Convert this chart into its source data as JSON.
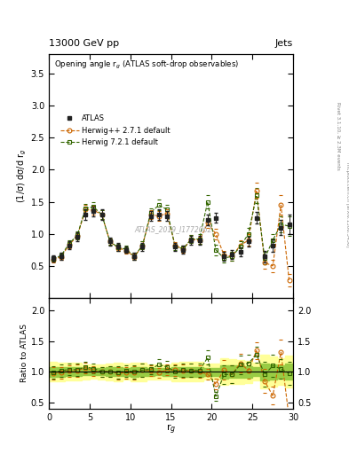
{
  "title_top": "13000 GeV pp",
  "title_right": "Jets",
  "plot_title": "Opening angle r$_g$ (ATLAS soft-drop observables)",
  "ylabel_main": "(1/σ) dσ/d r$_g$",
  "ylabel_ratio": "Ratio to ATLAS",
  "xlabel": "r$_g$",
  "watermark": "ATLAS_2019_I1772062",
  "right_label": "Rivet 3.1.10, ≥ 2.3M events",
  "right_label2": "mcplots.cern.ch [arXiv:1306.3436]",
  "xlim": [
    0,
    30
  ],
  "ylim_main": [
    0.0,
    3.8
  ],
  "ylim_ratio": [
    0.4,
    2.2
  ],
  "x": [
    0.5,
    1.5,
    2.5,
    3.5,
    4.5,
    5.5,
    6.5,
    7.5,
    8.5,
    9.5,
    10.5,
    11.5,
    12.5,
    13.5,
    14.5,
    15.5,
    16.5,
    17.5,
    18.5,
    19.5,
    20.5,
    21.5,
    22.5,
    23.5,
    24.5,
    25.5,
    26.5,
    27.5,
    28.5,
    29.5
  ],
  "atlas_y": [
    0.62,
    0.65,
    0.82,
    0.95,
    1.3,
    1.35,
    1.3,
    0.88,
    0.8,
    0.75,
    0.65,
    0.8,
    1.28,
    1.3,
    1.28,
    0.8,
    0.75,
    0.9,
    0.9,
    1.22,
    1.25,
    0.65,
    0.68,
    0.72,
    0.88,
    1.25,
    0.65,
    0.82,
    1.1,
    1.15
  ],
  "atlas_yerr": [
    0.05,
    0.05,
    0.06,
    0.07,
    0.08,
    0.08,
    0.08,
    0.06,
    0.06,
    0.05,
    0.05,
    0.06,
    0.08,
    0.08,
    0.08,
    0.06,
    0.06,
    0.07,
    0.07,
    0.08,
    0.08,
    0.07,
    0.07,
    0.07,
    0.08,
    0.09,
    0.09,
    0.1,
    0.12,
    0.15
  ],
  "herwig_pp_y": [
    0.6,
    0.64,
    0.83,
    0.97,
    1.38,
    1.37,
    1.3,
    0.88,
    0.78,
    0.74,
    0.64,
    0.82,
    1.3,
    1.28,
    1.32,
    0.82,
    0.76,
    0.92,
    0.9,
    1.17,
    1.0,
    0.67,
    0.65,
    0.82,
    0.9,
    1.68,
    0.55,
    0.5,
    1.45,
    0.28
  ],
  "herwig_pp_yerr": [
    0.04,
    0.04,
    0.05,
    0.06,
    0.07,
    0.07,
    0.07,
    0.05,
    0.05,
    0.05,
    0.05,
    0.06,
    0.07,
    0.07,
    0.07,
    0.05,
    0.05,
    0.06,
    0.06,
    0.08,
    0.08,
    0.07,
    0.07,
    0.08,
    0.09,
    0.12,
    0.1,
    0.1,
    0.15,
    0.1
  ],
  "herwig7_y": [
    0.61,
    0.66,
    0.85,
    0.98,
    1.4,
    1.42,
    1.3,
    0.88,
    0.79,
    0.76,
    0.65,
    0.82,
    1.33,
    1.45,
    1.38,
    0.8,
    0.77,
    0.92,
    0.92,
    1.5,
    0.75,
    0.62,
    0.65,
    0.8,
    1.0,
    1.6,
    0.62,
    0.9,
    1.15,
    1.12
  ],
  "herwig7_yerr": [
    0.04,
    0.04,
    0.05,
    0.06,
    0.07,
    0.07,
    0.07,
    0.05,
    0.05,
    0.05,
    0.05,
    0.06,
    0.07,
    0.08,
    0.08,
    0.05,
    0.05,
    0.06,
    0.07,
    0.1,
    0.08,
    0.07,
    0.07,
    0.08,
    0.09,
    0.12,
    0.1,
    0.1,
    0.13,
    0.15
  ],
  "atlas_color": "#222222",
  "herwig_pp_color": "#cc6600",
  "herwig7_color": "#336600",
  "band_yellow": "#ffff99",
  "band_green": "#99cc44"
}
